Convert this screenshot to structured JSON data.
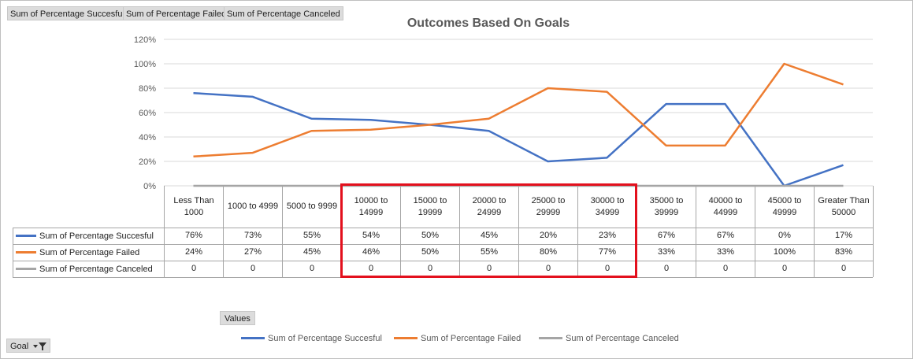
{
  "field_buttons": {
    "successful": "Sum of Percentage Succesful",
    "failed": "Sum of Percentage Failed",
    "canceled": "Sum of Percentage Canceled",
    "values": "Values",
    "goal": "Goal"
  },
  "colors": {
    "successful": "#4472c4",
    "failed": "#ed7d31",
    "canceled": "#a5a5a5",
    "highlight": "#e3101d",
    "grid": "#d9d9d9"
  },
  "chart_data": {
    "type": "line",
    "title": "Outcomes Based On Goals",
    "categories": [
      "Less Than 1000",
      "1000 to 4999",
      "5000 to 9999",
      "10000 to 14999",
      "15000 to 19999",
      "20000 to 24999",
      "25000 to 29999",
      "30000 to 34999",
      "35000 to 39999",
      "40000 to 44999",
      "45000 to 49999",
      "Greater Than 50000"
    ],
    "y_ticks": [
      "0%",
      "20%",
      "40%",
      "60%",
      "80%",
      "100%",
      "120%"
    ],
    "ylim": [
      0,
      1.2
    ],
    "grid": true,
    "legend_position": "bottom",
    "series": [
      {
        "name": "Sum of Percentage Succesful",
        "values": [
          0.76,
          0.73,
          0.55,
          0.54,
          0.5,
          0.45,
          0.2,
          0.23,
          0.67,
          0.67,
          0.0,
          0.17
        ],
        "labels": [
          "76%",
          "73%",
          "55%",
          "54%",
          "50%",
          "45%",
          "20%",
          "23%",
          "67%",
          "67%",
          "0%",
          "17%"
        ]
      },
      {
        "name": "Sum of Percentage Failed",
        "values": [
          0.24,
          0.27,
          0.45,
          0.46,
          0.5,
          0.55,
          0.8,
          0.77,
          0.33,
          0.33,
          1.0,
          0.83
        ],
        "labels": [
          "24%",
          "27%",
          "45%",
          "46%",
          "50%",
          "55%",
          "80%",
          "77%",
          "33%",
          "33%",
          "100%",
          "83%"
        ]
      },
      {
        "name": "Sum of Percentage Canceled",
        "values": [
          0,
          0,
          0,
          0,
          0,
          0,
          0,
          0,
          0,
          0,
          0,
          0
        ],
        "labels": [
          "0",
          "0",
          "0",
          "0",
          "0",
          "0",
          "0",
          "0",
          "0",
          "0",
          "0",
          "0"
        ]
      }
    ],
    "highlighted_categories": [
      "10000 to 14999",
      "15000 to 19999",
      "20000 to 24999",
      "25000 to 29999",
      "30000 to 34999"
    ]
  }
}
